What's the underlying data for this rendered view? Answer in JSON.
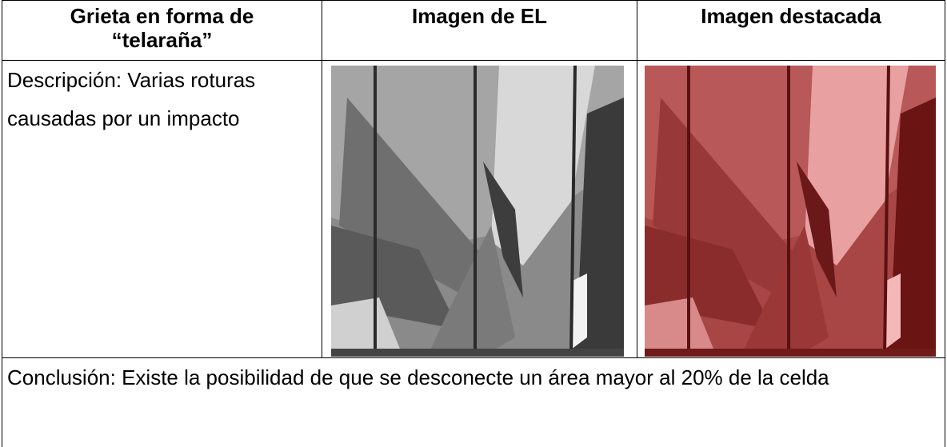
{
  "table": {
    "header": [
      "Grieta en forma de “telaraña”",
      "Imagen de EL",
      "Imagen destacada"
    ],
    "description": "Descripción: Varias roturas causadas por un impacto",
    "conclusion": "Conclusión: Existe la posibilidad de que se desconecte un área mayor al 20% de la celda"
  }
}
